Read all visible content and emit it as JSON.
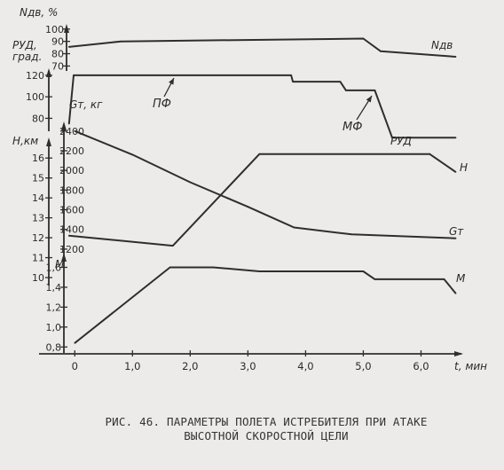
{
  "caption": {
    "line1": "РИС. 46. ПАРАМЕТРЫ ПОЛЕТА ИСТРЕБИТЕЛЯ ПРИ АТАКЕ",
    "line2": "ВЫСОТНОЙ СКОРОСТНОЙ ЦЕЛИ"
  },
  "chart_data": {
    "type": "line",
    "title": "",
    "x_axis": {
      "label": "t, мин",
      "ticks": [
        "0",
        "1,0",
        "2,0",
        "3,0",
        "4,0",
        "5,0",
        "6,0"
      ],
      "range": [
        -0.45,
        6.7
      ]
    },
    "axes": {
      "ndv": {
        "label_line1": "Nдв, %",
        "ticks": [
          "100",
          "90",
          "80",
          "70"
        ],
        "range": [
          66,
          102
        ]
      },
      "rud": {
        "label_line1": "РУД,",
        "label_line2": "град.",
        "ticks": [
          "120",
          "100",
          "80"
        ],
        "range": [
          68,
          124
        ]
      },
      "h": {
        "label_line1": "Н,км",
        "ticks": [
          "16",
          "15",
          "14",
          "13",
          "12",
          "11",
          "10"
        ],
        "range": [
          9.6,
          16.9
        ]
      },
      "gt": {
        "label_line1": "Gт, кг",
        "ticks": [
          "2400",
          "2200",
          "2000",
          "1800",
          "1600",
          "1400",
          "1200"
        ],
        "range": [
          1100,
          2470
        ]
      },
      "m": {
        "label_line1": "М",
        "ticks": [
          "1,6",
          "1,4",
          "1,2",
          "1,0",
          "0,8"
        ],
        "range": [
          0.74,
          1.72
        ]
      }
    },
    "series": [
      {
        "name": "Nдв",
        "axis": "ndv",
        "points": [
          [
            -0.1,
            85.5
          ],
          [
            0.8,
            90
          ],
          [
            5.0,
            92.3
          ],
          [
            5.3,
            82
          ],
          [
            6.6,
            77.5
          ]
        ]
      },
      {
        "name": "РУД",
        "axis": "rud",
        "points": [
          [
            -0.1,
            75
          ],
          [
            -0.02,
            120
          ],
          [
            3.75,
            120
          ],
          [
            3.78,
            114
          ],
          [
            4.6,
            114
          ],
          [
            4.7,
            106
          ],
          [
            5.2,
            106
          ],
          [
            5.5,
            62
          ],
          [
            6.6,
            62
          ]
        ]
      },
      {
        "name": "Н",
        "axis": "h",
        "points": [
          [
            -0.1,
            12.1
          ],
          [
            1.7,
            11.6
          ],
          [
            3.2,
            16.2
          ],
          [
            6.15,
            16.2
          ],
          [
            6.6,
            15.3
          ]
        ]
      },
      {
        "name": "Gт",
        "axis": "gt",
        "points": [
          [
            0,
            2400
          ],
          [
            1.0,
            2160
          ],
          [
            2.0,
            1880
          ],
          [
            3.0,
            1630
          ],
          [
            3.8,
            1420
          ],
          [
            4.8,
            1350
          ],
          [
            6.6,
            1310
          ]
        ]
      },
      {
        "name": "М",
        "axis": "m",
        "points": [
          [
            0,
            0.84
          ],
          [
            1.65,
            1.6
          ],
          [
            2.4,
            1.6
          ],
          [
            3.2,
            1.56
          ],
          [
            5.0,
            1.56
          ],
          [
            5.2,
            1.48
          ],
          [
            6.4,
            1.48
          ],
          [
            6.6,
            1.34
          ]
        ]
      }
    ],
    "annotations": [
      {
        "text": "ПФ"
      },
      {
        "text": "МФ"
      }
    ]
  }
}
